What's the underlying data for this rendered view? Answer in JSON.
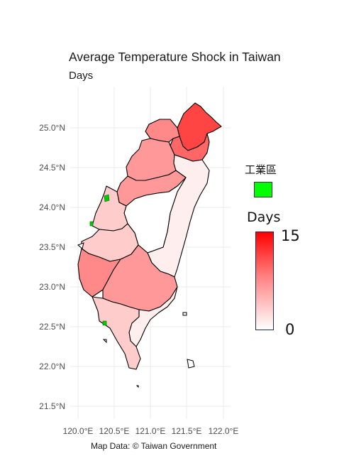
{
  "title": "Average Temperature Shock in Taiwan",
  "subtitle": "Days",
  "caption": "Map Data: © Taiwan Government",
  "axes": {
    "y_ticks": [
      "25.0°N",
      "24.5°N",
      "24.0°N",
      "23.5°N",
      "23.0°N",
      "22.5°N",
      "22.0°N",
      "21.5°N"
    ],
    "x_ticks": [
      "120.0°E",
      "120.5°E",
      "121.0°E",
      "121.5°E",
      "122.0°E"
    ],
    "grid": true
  },
  "legend": {
    "industrial_title": "工業區",
    "industrial_color": "#00ff00",
    "days_title": "Days",
    "days_max": "15",
    "days_min": "0",
    "color_high": "#ff0000",
    "color_low": "#ffffff"
  },
  "map_data": {
    "regions": [
      {
        "name": "northern-tip",
        "days": 11
      },
      {
        "name": "north-east",
        "days": 9
      },
      {
        "name": "north-west",
        "days": 7
      },
      {
        "name": "north-central",
        "days": 6
      },
      {
        "name": "central-west",
        "days": 6
      },
      {
        "name": "central-east",
        "days": 1
      },
      {
        "name": "west-coast",
        "days": 3
      },
      {
        "name": "central",
        "days": 0
      },
      {
        "name": "south-west-upper",
        "days": 3
      },
      {
        "name": "south-west",
        "days": 7
      },
      {
        "name": "south-central",
        "days": 6
      },
      {
        "name": "south-east",
        "days": 1
      },
      {
        "name": "southern-tip",
        "days": 3
      }
    ]
  }
}
